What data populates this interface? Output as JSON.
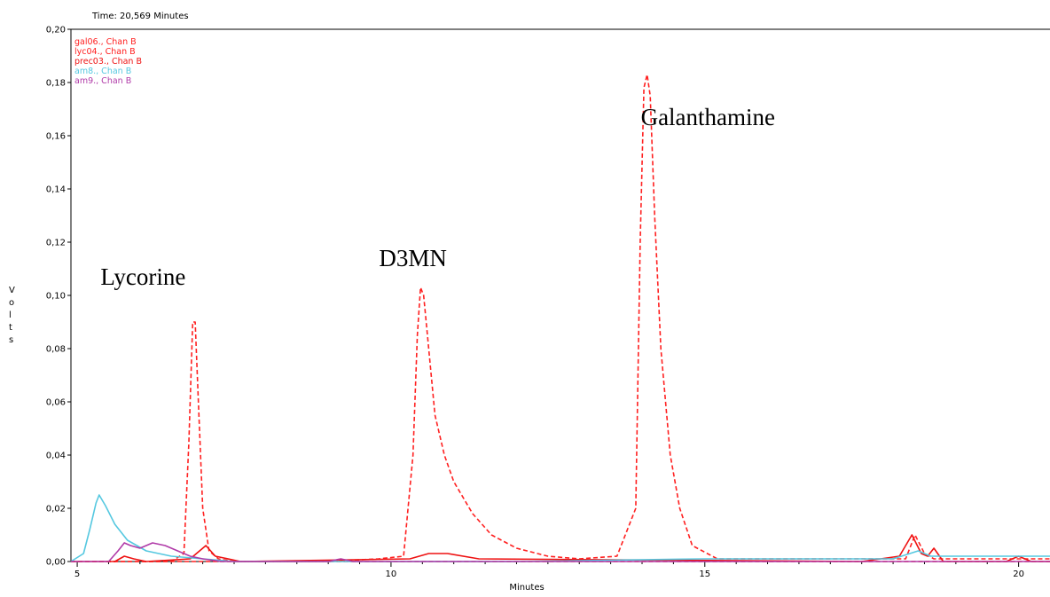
{
  "chart_data": {
    "type": "line",
    "time_readout": "Time:  20,569 Minutes",
    "xlabel": "Minutes",
    "ylabel": "V o l t s",
    "xlim": [
      4.9,
      20.5
    ],
    "ylim": [
      0.0,
      0.2
    ],
    "x_ticks": [
      {
        "v": 5,
        "label": "5"
      },
      {
        "v": 10,
        "label": "10"
      },
      {
        "v": 15,
        "label": "15"
      },
      {
        "v": 20,
        "label": "20"
      }
    ],
    "y_ticks": [
      {
        "v": 0.0,
        "label": "0,00"
      },
      {
        "v": 0.02,
        "label": "0,02"
      },
      {
        "v": 0.04,
        "label": "0,04"
      },
      {
        "v": 0.06,
        "label": "0,06"
      },
      {
        "v": 0.08,
        "label": "0,08"
      },
      {
        "v": 0.1,
        "label": "0,10"
      },
      {
        "v": 0.12,
        "label": "0,12"
      },
      {
        "v": 0.14,
        "label": "0,14"
      },
      {
        "v": 0.16,
        "label": "0,16"
      },
      {
        "v": 0.18,
        "label": "0,18"
      },
      {
        "v": 0.2,
        "label": "0,20"
      }
    ],
    "grid": false,
    "legend_position": "top-left",
    "series": [
      {
        "name": "gal06., Chan B",
        "color": "#ff2020",
        "dashed": true,
        "x": [
          4.9,
          9.0,
          9.8,
          10.2,
          10.35,
          10.42,
          10.47,
          10.52,
          10.58,
          10.7,
          10.85,
          11.0,
          11.3,
          11.6,
          12.0,
          12.5,
          13.0,
          13.6,
          13.9,
          13.97,
          14.03,
          14.08,
          14.13,
          14.2,
          14.3,
          14.45,
          14.6,
          14.8,
          15.2,
          17.5,
          18.2,
          18.35,
          18.5,
          18.65,
          20.5
        ],
        "y": [
          0.0,
          0.0,
          0.001,
          0.002,
          0.04,
          0.085,
          0.103,
          0.1,
          0.085,
          0.055,
          0.04,
          0.03,
          0.018,
          0.01,
          0.005,
          0.002,
          0.001,
          0.002,
          0.02,
          0.12,
          0.178,
          0.183,
          0.175,
          0.13,
          0.08,
          0.04,
          0.02,
          0.006,
          0.001,
          0.001,
          0.001,
          0.01,
          0.003,
          0.001,
          0.001
        ]
      },
      {
        "name": "lyc04., Chan B",
        "color": "#ff2020",
        "dashed": true,
        "x": [
          4.9,
          6.5,
          6.7,
          6.78,
          6.84,
          6.88,
          6.93,
          7.0,
          7.1,
          7.25,
          7.5,
          20.5
        ],
        "y": [
          0.0,
          0.0,
          0.003,
          0.045,
          0.09,
          0.09,
          0.06,
          0.02,
          0.004,
          0.001,
          0.0,
          0.0
        ]
      },
      {
        "name": "prec03., Chan B",
        "color": "#ee1111",
        "dashed": false,
        "x": [
          4.9,
          5.6,
          5.75,
          5.9,
          6.1,
          6.8,
          6.9,
          7.05,
          7.2,
          7.6,
          10.3,
          10.6,
          10.9,
          11.4,
          17.5,
          18.1,
          18.3,
          18.45,
          18.55,
          18.65,
          18.8,
          19.8,
          20.0,
          20.2,
          20.5
        ],
        "y": [
          0.0,
          0.0,
          0.002,
          0.001,
          0.0,
          0.001,
          0.003,
          0.006,
          0.002,
          0.0,
          0.001,
          0.003,
          0.003,
          0.001,
          0.0,
          0.002,
          0.01,
          0.003,
          0.002,
          0.005,
          0.0,
          0.0,
          0.002,
          0.0,
          0.0
        ]
      },
      {
        "name": "am8., Chan B",
        "color": "#55c8e0",
        "dashed": false,
        "x": [
          4.9,
          5.1,
          5.2,
          5.3,
          5.35,
          5.45,
          5.6,
          5.8,
          6.1,
          6.5,
          7.0,
          7.5,
          9.0,
          12.0,
          15.0,
          18.0,
          18.4,
          18.6,
          20.5
        ],
        "y": [
          0.0,
          0.003,
          0.012,
          0.022,
          0.025,
          0.021,
          0.014,
          0.008,
          0.004,
          0.002,
          0.001,
          0.0,
          0.0,
          0.0,
          0.001,
          0.001,
          0.004,
          0.002,
          0.002
        ]
      },
      {
        "name": "am9., Chan B",
        "color": "#b03aa8",
        "dashed": false,
        "x": [
          4.9,
          5.5,
          5.65,
          5.75,
          5.85,
          6.0,
          6.2,
          6.4,
          6.6,
          6.8,
          7.0,
          7.3,
          9.0,
          9.2,
          9.4,
          12.0,
          20.5
        ],
        "y": [
          0.0,
          0.0,
          0.004,
          0.007,
          0.006,
          0.005,
          0.007,
          0.006,
          0.004,
          0.002,
          0.001,
          0.0,
          0.0,
          0.001,
          0.0,
          0.0,
          0.0
        ]
      }
    ],
    "annotations": [
      {
        "text": "Lycorine",
        "x": 6.05,
        "y": 0.104
      },
      {
        "text": "D3MN",
        "x": 10.35,
        "y": 0.111
      },
      {
        "text": "Galanthamine",
        "x": 15.05,
        "y": 0.164
      }
    ]
  }
}
